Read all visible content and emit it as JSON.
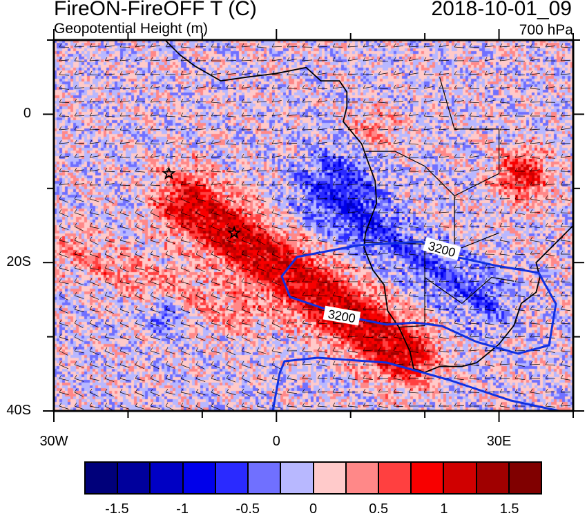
{
  "header": {
    "title": "FireON-FireOFF T (C)",
    "subtitle": "Geopotential Height (m)",
    "datetime": "2018-10-01_09",
    "level": "700 hPa"
  },
  "map": {
    "lon_range": [
      -30,
      40
    ],
    "lat_range": [
      -40,
      10
    ],
    "lon_ticks": [
      {
        "lon": -30,
        "label": "30W"
      },
      {
        "lon": 0,
        "label": "0"
      },
      {
        "lon": 30,
        "label": "30E"
      }
    ],
    "lat_ticks": [
      {
        "lat": 0,
        "label": "0"
      },
      {
        "lat": -20,
        "label": "20S"
      },
      {
        "lat": -40,
        "label": "40S"
      }
    ],
    "contour_labels": [
      "3200",
      "3200"
    ],
    "contour_color": "#1030e0",
    "markers": [
      {
        "type": "star",
        "lon": -14.5,
        "lat": -8
      },
      {
        "type": "star",
        "lon": -5.7,
        "lat": -16
      }
    ]
  },
  "colorbar": {
    "levels": [
      -1.5,
      -1.25,
      -1,
      -0.75,
      -0.5,
      -0.25,
      0,
      0.25,
      0.5,
      0.75,
      1,
      1.25,
      1.5
    ],
    "labels": [
      "-1.5",
      "-1",
      "-0.5",
      "0",
      "0.5",
      "1",
      "1.5"
    ],
    "label_values": [
      -1.5,
      -1,
      -0.5,
      0,
      0.5,
      1,
      1.5
    ],
    "colors": [
      "#00007a",
      "#00009c",
      "#0000c4",
      "#0000ea",
      "#2a2aff",
      "#7070ff",
      "#b8b8ff",
      "#ffcaca",
      "#ff8888",
      "#ff4040",
      "#f80000",
      "#d00000",
      "#a00000",
      "#800000"
    ]
  }
}
